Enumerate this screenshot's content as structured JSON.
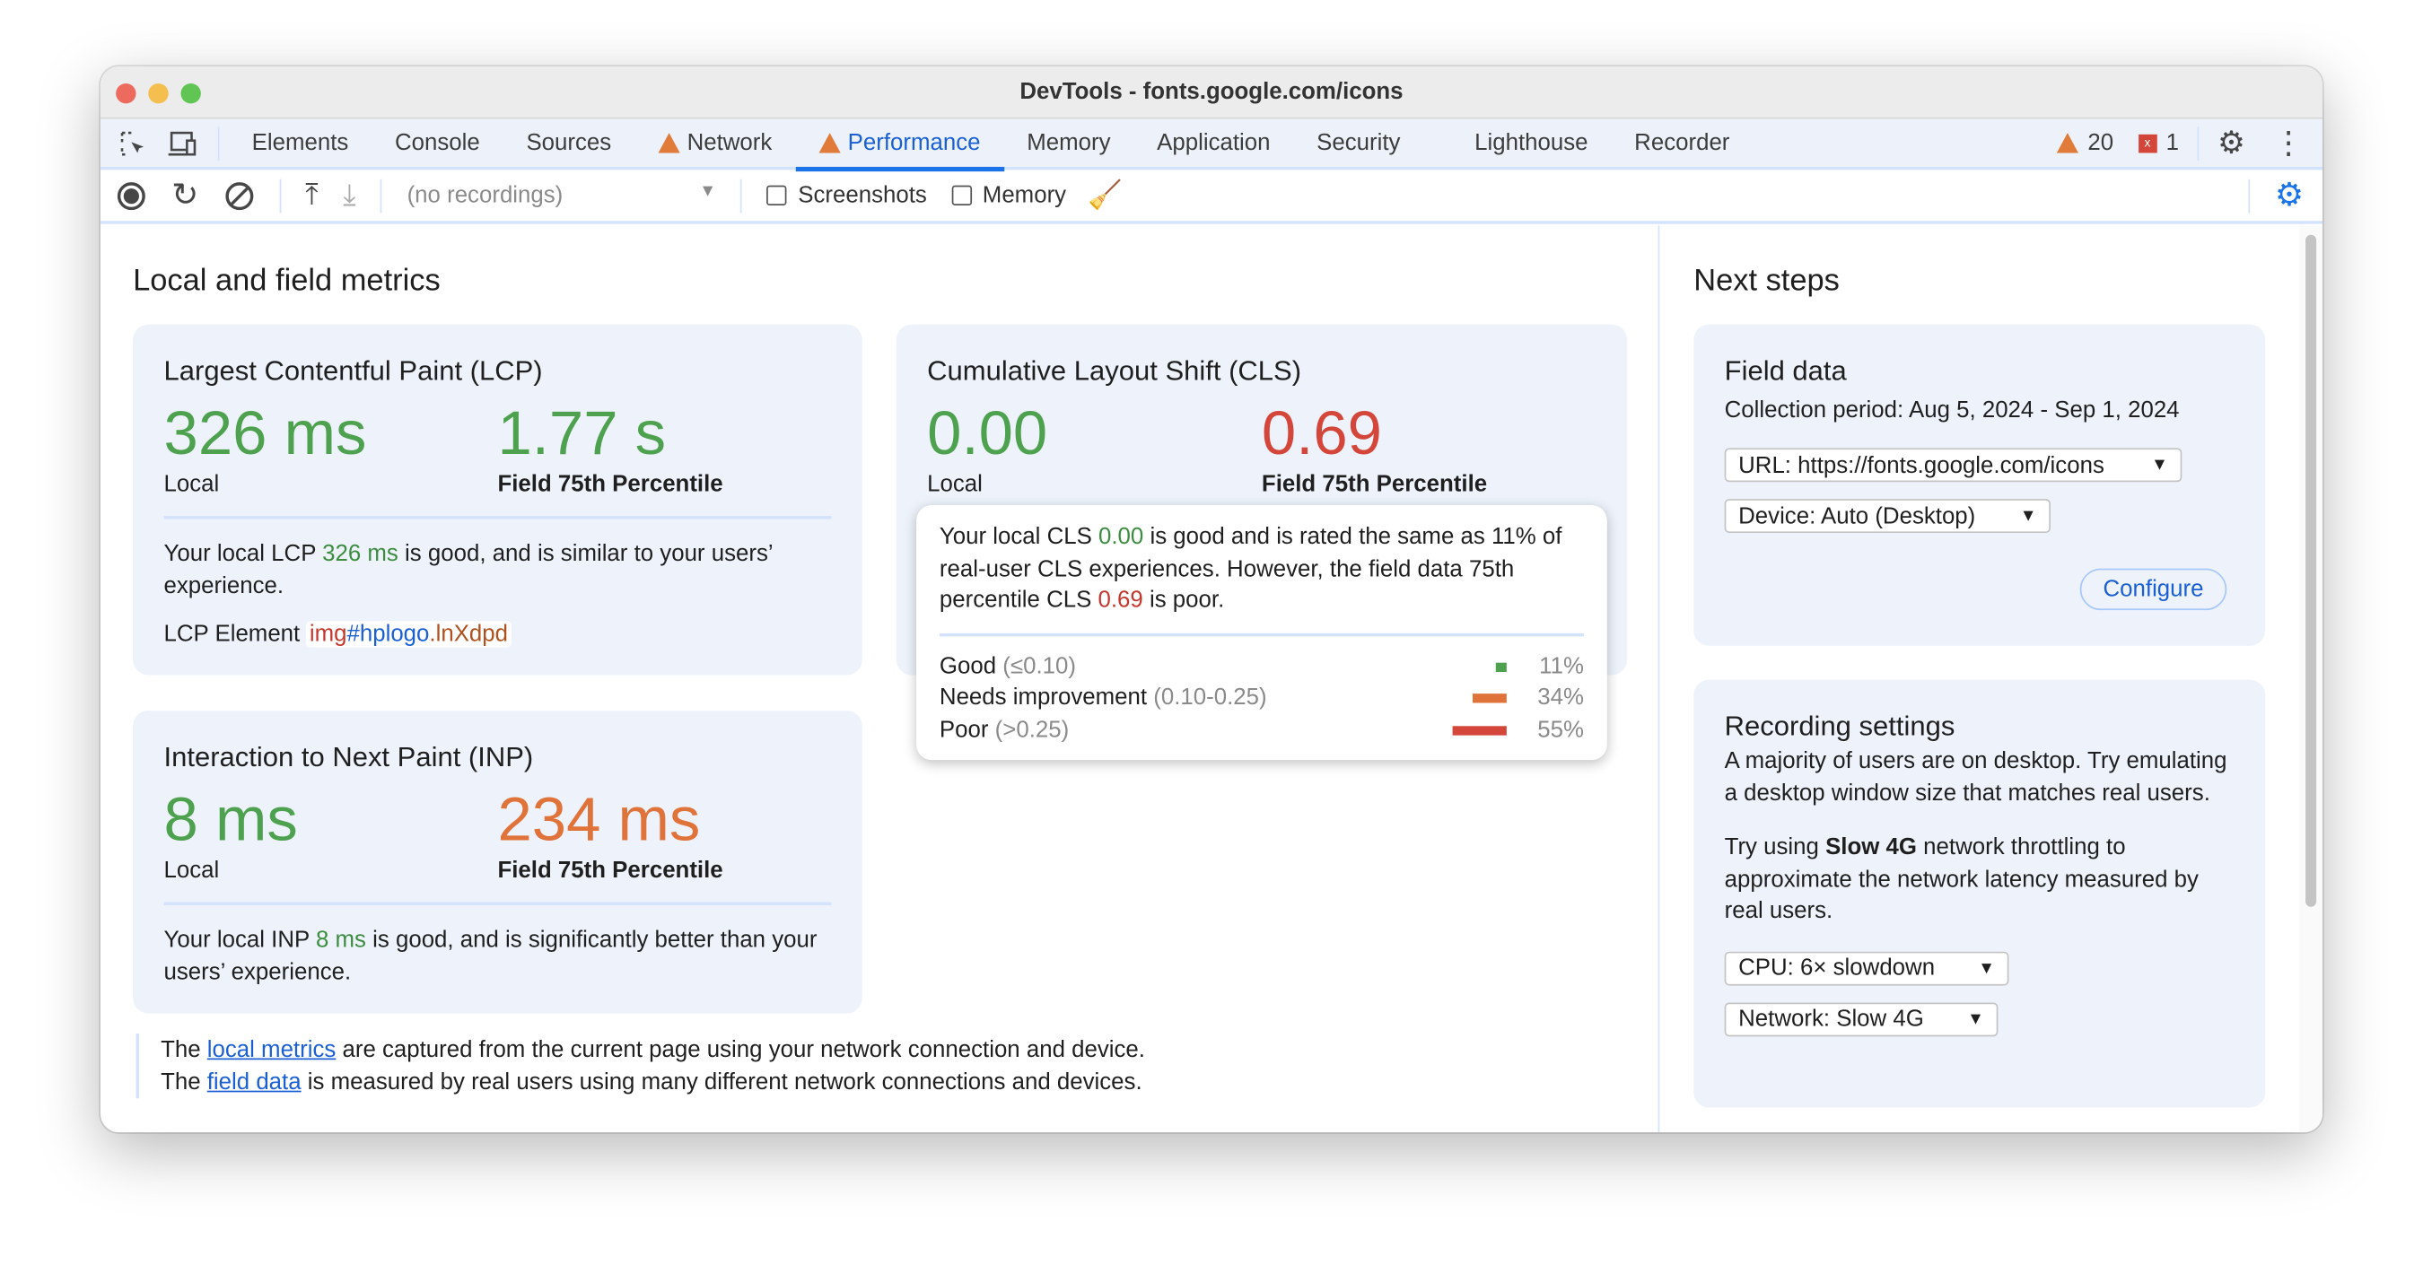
{
  "window": {
    "title": "DevTools - fonts.google.com/icons"
  },
  "tabs": [
    {
      "label": "Elements"
    },
    {
      "label": "Console"
    },
    {
      "label": "Sources"
    },
    {
      "label": "Network",
      "warning": true
    },
    {
      "label": "Performance",
      "warning": true,
      "active": true
    },
    {
      "label": "Memory"
    },
    {
      "label": "Application"
    },
    {
      "label": "Security"
    },
    {
      "label": "Lighthouse"
    },
    {
      "label": "Recorder"
    }
  ],
  "status": {
    "warnings": "20",
    "errors": "1"
  },
  "toolbar": {
    "recordings": "(no recordings)",
    "screenshots": "Screenshots",
    "memory": "Memory",
    "screenshots_checked": false,
    "memory_checked": false
  },
  "main": {
    "title": "Local and field metrics",
    "lcp": {
      "title": "Largest Contentful Paint (LCP)",
      "local": "326 ms",
      "field": "1.77 s",
      "local_label": "Local",
      "field_label": "Field 75th Percentile",
      "desc_pre": "Your local LCP ",
      "desc_val": "326 ms",
      "desc_post": " is good, and is similar to your users’ experience.",
      "element_label": "LCP Element",
      "el_tag": "img",
      "el_id": "#hplogo",
      "el_class": ".lnXdpd"
    },
    "cls": {
      "title": "Cumulative Layout Shift (CLS)",
      "local": "0.00",
      "field": "0.69",
      "local_label": "Local",
      "field_label": "Field 75th Percentile"
    },
    "inp": {
      "title": "Interaction to Next Paint (INP)",
      "local": "8 ms",
      "field": "234 ms",
      "local_label": "Local",
      "field_label": "Field 75th Percentile",
      "desc_pre": "Your local INP ",
      "desc_val": "8 ms",
      "desc_post": " is good, and is significantly better than your users’ experience."
    },
    "tooltip": {
      "p1": "Your local CLS ",
      "v1": "0.00",
      "p2": " is good and is rated the same as 11% of real-user CLS experiences. However, the field data 75th percentile CLS ",
      "v2": "0.69",
      "p3": " is poor.",
      "rows": [
        {
          "label": "Good",
          "range": "(≤0.10)",
          "pct": "11%",
          "value": 11,
          "color": "#4ea24f"
        },
        {
          "label": "Needs improvement",
          "range": "(0.10-0.25)",
          "pct": "34%",
          "value": 34,
          "color": "#e0733a"
        },
        {
          "label": "Poor",
          "range": "(>0.25)",
          "pct": "55%",
          "value": 55,
          "color": "#d4463a"
        }
      ]
    },
    "note": {
      "l1a": "The ",
      "l1link": "local metrics",
      "l1b": " are captured from the current page using your network connection and device.",
      "l2a": "The ",
      "l2link": "field data",
      "l2b": " is measured by real users using many different network connections and devices."
    }
  },
  "side": {
    "title": "Next steps",
    "field": {
      "title": "Field data",
      "period_label": "Collection period: ",
      "period": "Aug 5, 2024 - Sep 1, 2024",
      "url": "URL: https://fonts.google.com/icons",
      "device": "Device: Auto (Desktop)",
      "configure": "Configure"
    },
    "rec": {
      "title": "Recording settings",
      "p1": "A majority of users are on desktop. Try emulating a desktop window size that matches real users.",
      "p2a": "Try using ",
      "p2b": "Slow 4G",
      "p2c": " network throttling to approximate the network latency measured by real users.",
      "cpu": "CPU: 6× slowdown",
      "network": "Network: Slow 4G"
    }
  }
}
